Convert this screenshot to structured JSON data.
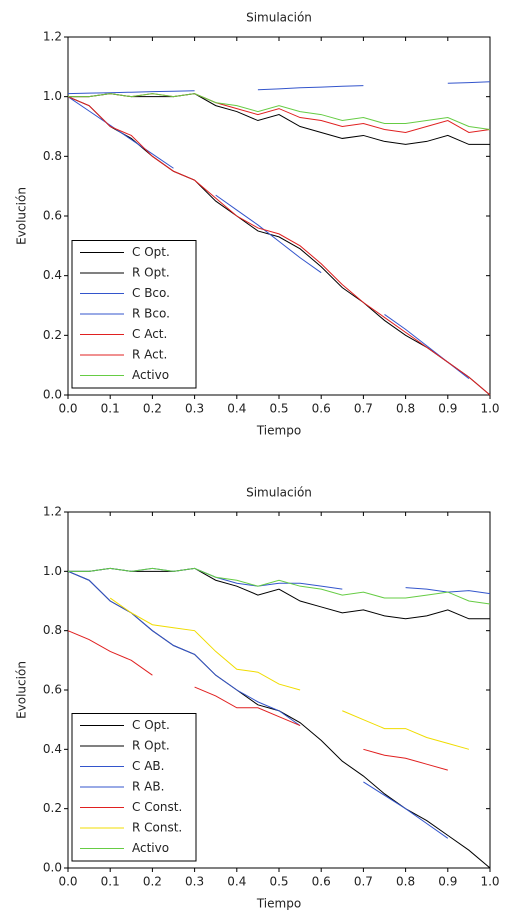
{
  "chart_data": [
    {
      "type": "line",
      "title": "Simulación",
      "xlabel": "Tiempo",
      "ylabel": "Evolución",
      "x": [
        0,
        0.05,
        0.1,
        0.15,
        0.2,
        0.25,
        0.3,
        0.35,
        0.4,
        0.45,
        0.5,
        0.55,
        0.6,
        0.65,
        0.7,
        0.75,
        0.8,
        0.85,
        0.9,
        0.95,
        1.0
      ],
      "xlim": [
        0,
        1
      ],
      "ylim": [
        0,
        1.2
      ],
      "xticks": [
        {
          "value": 0,
          "label": "0.0"
        },
        {
          "value": 0.1,
          "label": "0.1"
        },
        {
          "value": 0.2,
          "label": "0.2"
        },
        {
          "value": 0.3,
          "label": "0.3"
        },
        {
          "value": 0.4,
          "label": "0.4"
        },
        {
          "value": 0.5,
          "label": "0.5"
        },
        {
          "value": 0.6,
          "label": "0.6"
        },
        {
          "value": 0.7,
          "label": "0.7"
        },
        {
          "value": 0.8,
          "label": "0.8"
        },
        {
          "value": 0.9,
          "label": "0.9"
        },
        {
          "value": 1.0,
          "label": "1.0"
        }
      ],
      "yticks": [
        {
          "value": 0,
          "label": "0.0"
        },
        {
          "value": 0.2,
          "label": "0.2"
        },
        {
          "value": 0.4,
          "label": "0.4"
        },
        {
          "value": 0.6,
          "label": "0.6"
        },
        {
          "value": 0.8,
          "label": "0.8"
        },
        {
          "value": 1.0,
          "label": "1.0"
        },
        {
          "value": 1.2,
          "label": "1.2"
        }
      ],
      "legend": "lower left",
      "series": [
        {
          "name": "C Opt.",
          "color": "#000000",
          "values": [
            1.0,
            0.97,
            0.9,
            0.86,
            0.8,
            0.75,
            0.72,
            0.65,
            0.6,
            0.55,
            0.53,
            0.49,
            0.43,
            0.36,
            0.31,
            0.25,
            0.2,
            0.16,
            0.11,
            0.06,
            0.0
          ]
        },
        {
          "name": "R Opt.",
          "color": "#000000",
          "values": [
            1.0,
            1.0,
            1.01,
            1.0,
            1.0,
            1.0,
            1.01,
            0.97,
            0.95,
            0.92,
            0.94,
            0.9,
            0.88,
            0.86,
            0.87,
            0.85,
            0.84,
            0.85,
            0.87,
            0.84,
            0.84
          ]
        },
        {
          "name": "C Bco.",
          "color": "#3355cc",
          "values": [
            1.0,
            0.952,
            0.904,
            0.856,
            0.808,
            0.76,
            null,
            0.67,
            0.62,
            0.57,
            0.515,
            0.46,
            0.41,
            null,
            null,
            0.27,
            0.22,
            0.165,
            0.11,
            0.055,
            null
          ]
        },
        {
          "name": "R Bco.",
          "color": "#3355cc",
          "values": [
            1.01,
            1.012,
            1.013,
            1.015,
            1.017,
            1.018,
            1.02,
            null,
            null,
            1.023,
            1.026,
            1.03,
            1.032,
            1.035,
            1.037,
            null,
            null,
            null,
            1.045,
            1.047,
            1.05
          ]
        },
        {
          "name": "C Act.",
          "color": "#e02020",
          "values": [
            1.0,
            0.97,
            0.9,
            0.87,
            0.8,
            0.75,
            0.72,
            0.66,
            0.6,
            0.56,
            0.54,
            0.5,
            0.44,
            0.37,
            0.31,
            0.26,
            0.21,
            0.16,
            0.11,
            0.06,
            0.0
          ]
        },
        {
          "name": "R Act.",
          "color": "#e02020",
          "values": [
            1.0,
            1.0,
            1.01,
            1.0,
            1.01,
            1.0,
            1.01,
            0.98,
            0.96,
            0.94,
            0.96,
            0.93,
            0.92,
            0.9,
            0.91,
            0.89,
            0.88,
            0.9,
            0.92,
            0.88,
            0.89
          ]
        },
        {
          "name": "Activo",
          "color": "#66cc44",
          "values": [
            1.0,
            1.0,
            1.01,
            1.0,
            1.01,
            1.0,
            1.01,
            0.98,
            0.97,
            0.95,
            0.97,
            0.95,
            0.94,
            0.92,
            0.93,
            0.91,
            0.91,
            0.92,
            0.93,
            0.9,
            0.89
          ]
        }
      ]
    },
    {
      "type": "line",
      "title": "Simulación",
      "xlabel": "Tiempo",
      "ylabel": "Evolución",
      "x": [
        0,
        0.05,
        0.1,
        0.15,
        0.2,
        0.25,
        0.3,
        0.35,
        0.4,
        0.45,
        0.5,
        0.55,
        0.6,
        0.65,
        0.7,
        0.75,
        0.8,
        0.85,
        0.9,
        0.95,
        1.0
      ],
      "xlim": [
        0,
        1
      ],
      "ylim": [
        0,
        1.2
      ],
      "xticks": [
        {
          "value": 0,
          "label": "0.0"
        },
        {
          "value": 0.1,
          "label": "0.1"
        },
        {
          "value": 0.2,
          "label": "0.2"
        },
        {
          "value": 0.3,
          "label": "0.3"
        },
        {
          "value": 0.4,
          "label": "0.4"
        },
        {
          "value": 0.5,
          "label": "0.5"
        },
        {
          "value": 0.6,
          "label": "0.6"
        },
        {
          "value": 0.7,
          "label": "0.7"
        },
        {
          "value": 0.8,
          "label": "0.8"
        },
        {
          "value": 0.9,
          "label": "0.9"
        },
        {
          "value": 1.0,
          "label": "1.0"
        }
      ],
      "yticks": [
        {
          "value": 0,
          "label": "0.0"
        },
        {
          "value": 0.2,
          "label": "0.2"
        },
        {
          "value": 0.4,
          "label": "0.4"
        },
        {
          "value": 0.6,
          "label": "0.6"
        },
        {
          "value": 0.8,
          "label": "0.8"
        },
        {
          "value": 1.0,
          "label": "1.0"
        },
        {
          "value": 1.2,
          "label": "1.2"
        }
      ],
      "legend": "lower left",
      "series": [
        {
          "name": "C Opt.",
          "color": "#000000",
          "values": [
            1.0,
            0.97,
            0.9,
            0.86,
            0.8,
            0.75,
            0.72,
            0.65,
            0.6,
            0.55,
            0.53,
            0.49,
            0.43,
            0.36,
            0.31,
            0.25,
            0.2,
            0.16,
            0.11,
            0.06,
            0.0
          ]
        },
        {
          "name": "R Opt.",
          "color": "#000000",
          "values": [
            1.0,
            1.0,
            1.01,
            1.0,
            1.0,
            1.0,
            1.01,
            0.97,
            0.95,
            0.92,
            0.94,
            0.9,
            0.88,
            0.86,
            0.87,
            0.85,
            0.84,
            0.85,
            0.87,
            0.84,
            0.84
          ]
        },
        {
          "name": "C AB.",
          "color": "#3355cc",
          "values": [
            1.0,
            0.97,
            0.9,
            0.86,
            0.8,
            0.75,
            0.72,
            0.65,
            0.6,
            0.56,
            0.53,
            0.48,
            null,
            null,
            0.29,
            0.245,
            0.2,
            0.15,
            0.1,
            null,
            null
          ]
        },
        {
          "name": "R AB.",
          "color": "#3355cc",
          "values": [
            1.0,
            1.0,
            1.01,
            1.0,
            1.01,
            1.0,
            1.01,
            0.98,
            0.96,
            0.95,
            0.96,
            0.96,
            0.95,
            0.94,
            null,
            null,
            0.945,
            0.94,
            0.93,
            0.935,
            0.925
          ]
        },
        {
          "name": "C Const.",
          "color": "#e02020",
          "values": [
            0.8,
            0.77,
            0.73,
            0.7,
            0.65,
            null,
            0.61,
            0.58,
            0.54,
            0.54,
            0.51,
            0.48,
            null,
            null,
            0.4,
            0.38,
            0.37,
            0.35,
            0.33,
            null,
            null
          ]
        },
        {
          "name": "R Const.",
          "color": "#f0dc00",
          "values": [
            null,
            null,
            0.91,
            0.86,
            0.82,
            0.81,
            0.8,
            0.73,
            0.67,
            0.66,
            0.62,
            0.6,
            null,
            0.53,
            0.5,
            0.47,
            0.47,
            0.44,
            0.42,
            0.4,
            null
          ]
        },
        {
          "name": "Activo",
          "color": "#66cc44",
          "values": [
            1.0,
            1.0,
            1.01,
            1.0,
            1.01,
            1.0,
            1.01,
            0.98,
            0.97,
            0.95,
            0.97,
            0.95,
            0.94,
            0.92,
            0.93,
            0.91,
            0.91,
            0.92,
            0.93,
            0.9,
            0.89
          ]
        }
      ]
    }
  ]
}
